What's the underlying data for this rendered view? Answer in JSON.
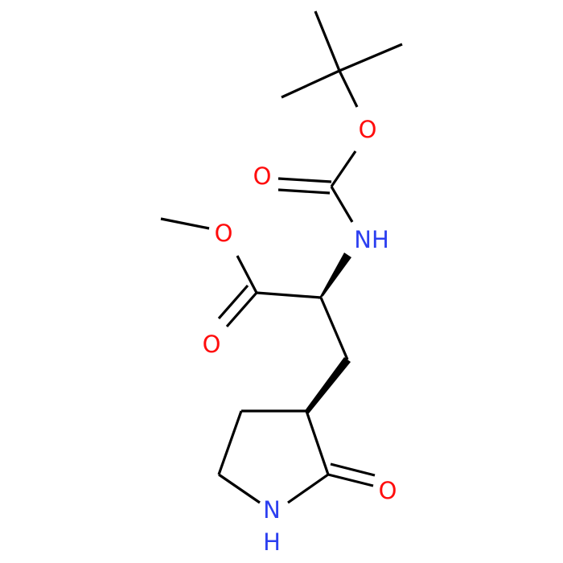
{
  "atoms": [
    "O",
    "O",
    "NH",
    "O",
    "O",
    "O",
    "N",
    "H"
  ]
}
